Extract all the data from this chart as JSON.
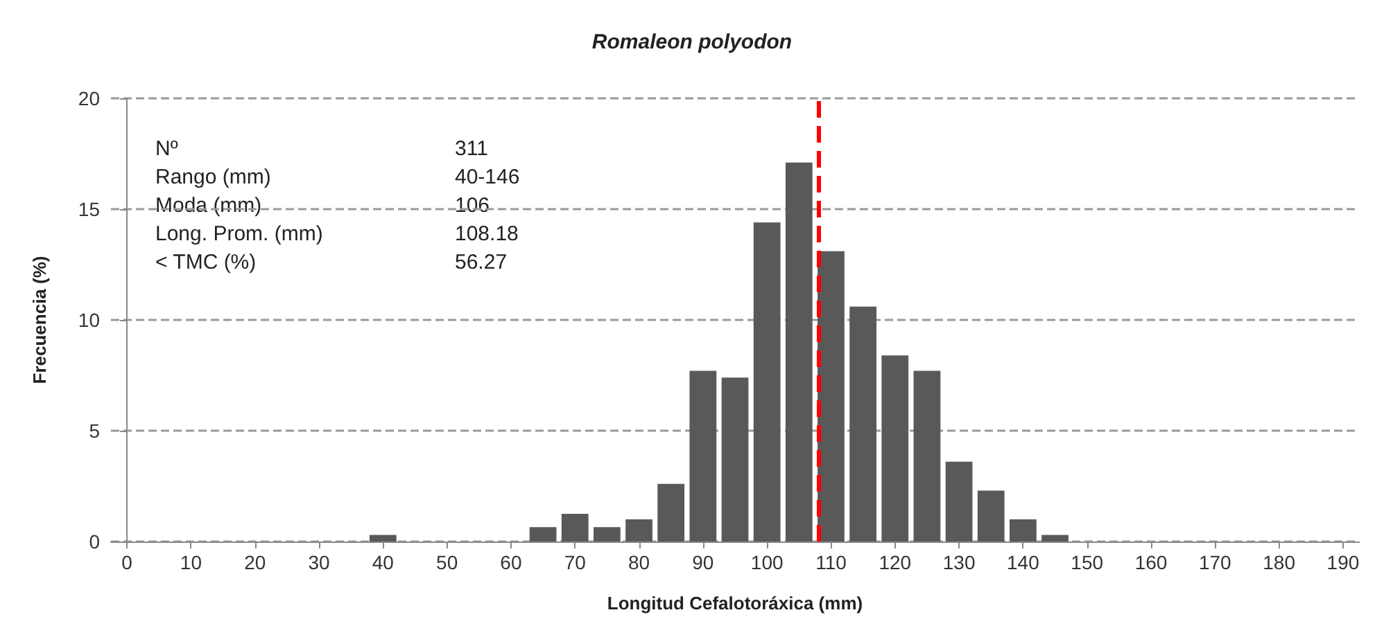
{
  "chart_data": {
    "type": "bar",
    "title": "Romaleon polyodon",
    "xlabel": "Longitud Cefalotoráxica (mm)",
    "ylabel": "Frecuencia (%)",
    "x": [
      40,
      65,
      70,
      75,
      80,
      85,
      90,
      95,
      100,
      105,
      110,
      115,
      120,
      125,
      130,
      135,
      140,
      145
    ],
    "values": [
      0.3,
      0.65,
      1.25,
      0.65,
      1.0,
      2.6,
      7.7,
      7.4,
      14.4,
      17.1,
      13.1,
      10.6,
      8.4,
      7.7,
      3.6,
      2.3,
      1.0,
      0.3
    ],
    "color": "#595959",
    "xlim": [
      -2.5,
      192.5
    ],
    "xticks": [
      0,
      10,
      20,
      30,
      40,
      50,
      60,
      70,
      80,
      90,
      100,
      110,
      120,
      130,
      140,
      150,
      160,
      170,
      180,
      190
    ],
    "ylim": [
      0,
      20
    ],
    "yticks": [
      0,
      5,
      10,
      15,
      20
    ],
    "grid": "y",
    "ref_lines": [
      {
        "axis": "x",
        "value": 108,
        "color": "#ff0000",
        "line_style": "dashed"
      }
    ],
    "annotations": [
      "Nº",
      "311",
      "Rango (mm)",
      "40-146",
      "Moda (mm)",
      "106",
      "Long. Prom. (mm)",
      "108.18",
      "< TMC (%)",
      "56.27"
    ]
  }
}
